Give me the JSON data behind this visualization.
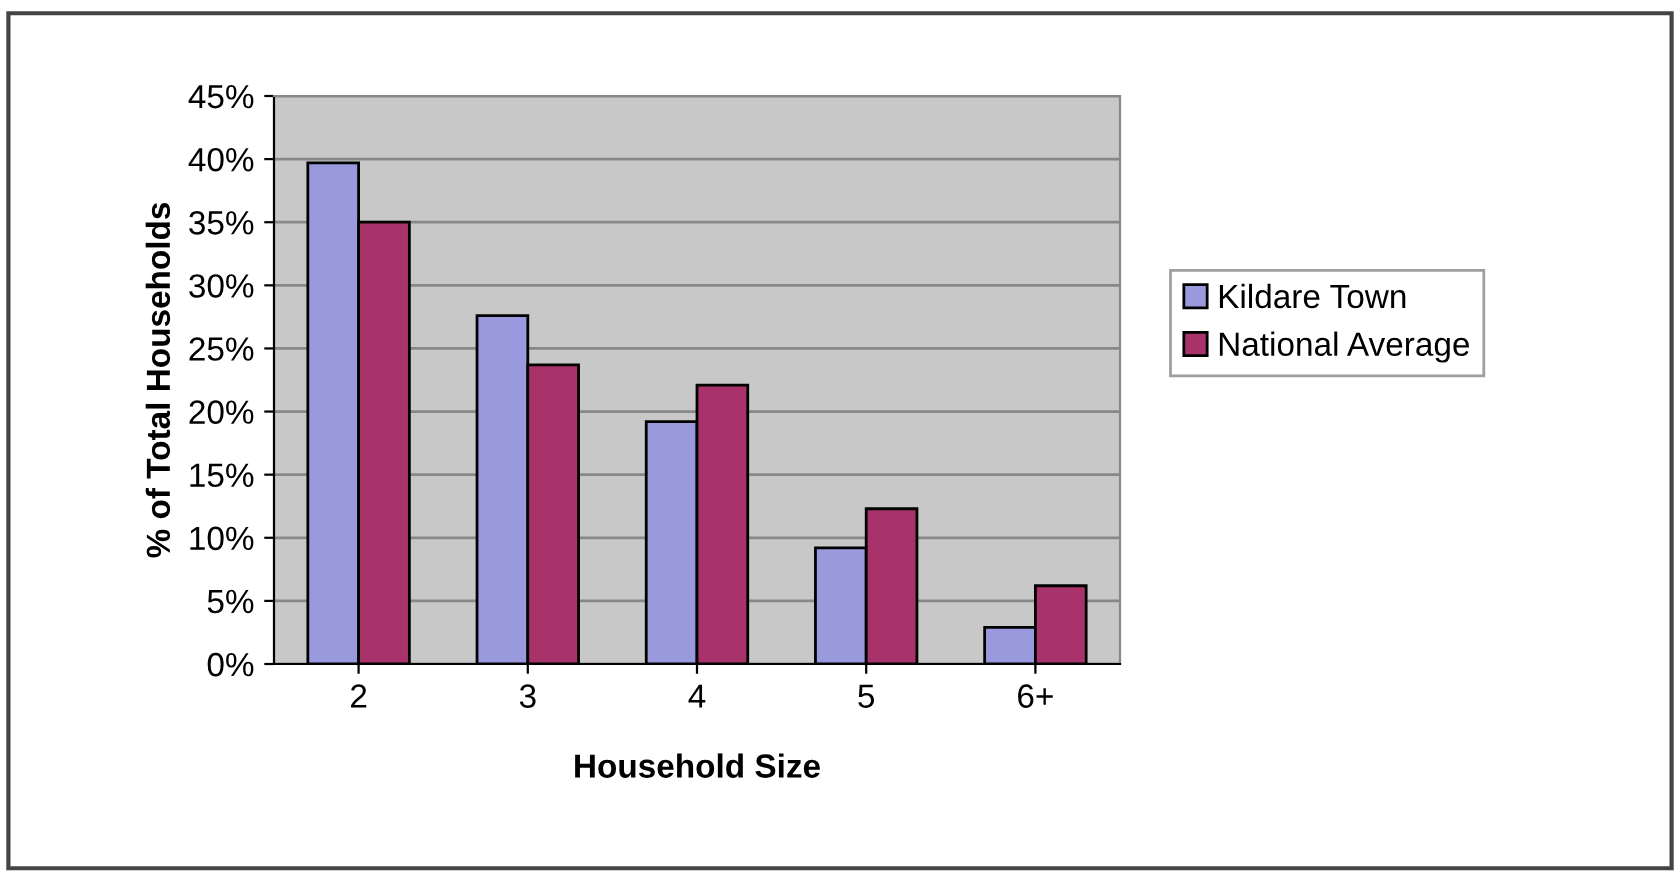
{
  "chart_data": {
    "type": "bar",
    "xlabel": "Household Size",
    "ylabel": "% of Total Households",
    "categories": [
      "2",
      "3",
      "4",
      "5",
      "6+"
    ],
    "series": [
      {
        "name": "Kildare Town",
        "color": "#9999dd",
        "values": [
          39.7,
          27.6,
          19.2,
          9.2,
          2.9
        ]
      },
      {
        "name": "National Average",
        "color": "#a8336a",
        "values": [
          35,
          23.7,
          22.1,
          12.3,
          6.2
        ]
      }
    ],
    "ylim": [
      0,
      45
    ],
    "yticks": [
      {
        "value": 0,
        "label": "0%"
      },
      {
        "value": 5,
        "label": "5%"
      },
      {
        "value": 10,
        "label": "10%"
      },
      {
        "value": 15,
        "label": "15%"
      },
      {
        "value": 20,
        "label": "20%"
      },
      {
        "value": 25,
        "label": "25%"
      },
      {
        "value": 30,
        "label": "30%"
      },
      {
        "value": 35,
        "label": "35%"
      },
      {
        "value": 40,
        "label": "40%"
      },
      {
        "value": 45,
        "label": "45%"
      }
    ],
    "grid": "y",
    "legend": "right"
  }
}
